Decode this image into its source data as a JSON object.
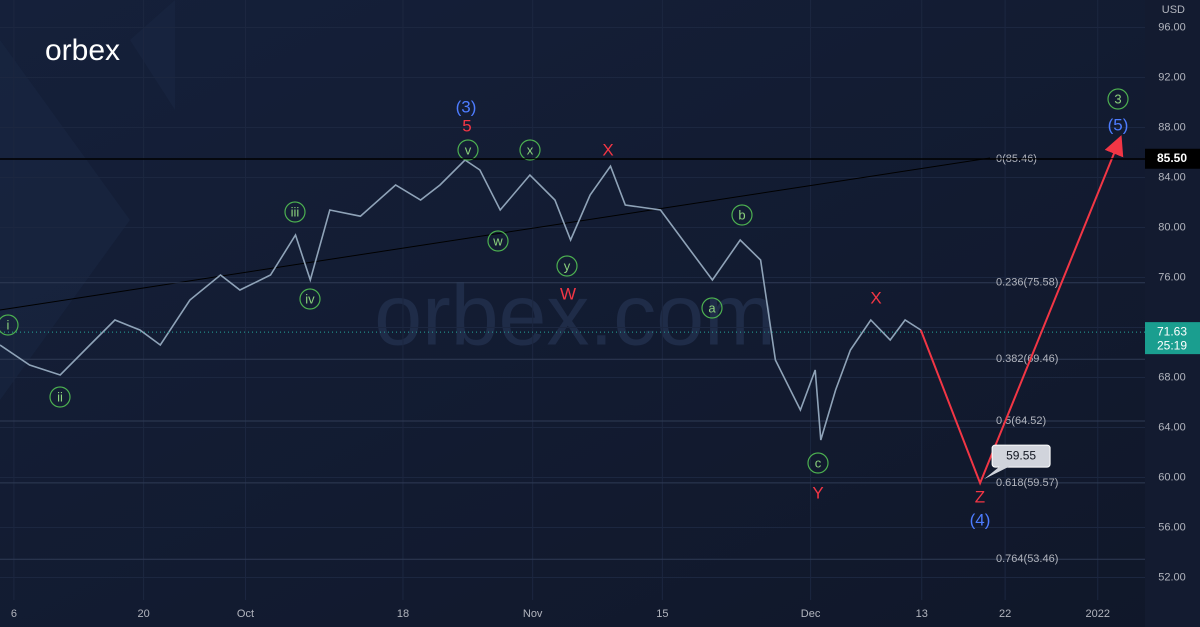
{
  "chart_data": {
    "type": "line",
    "logo": "orbex",
    "watermark": "orbex.com",
    "currency": "USD",
    "color": "#8fa3b8",
    "grid": true,
    "x": [
      3.5,
      6.7,
      10,
      13.2,
      15.9,
      18.6,
      20.8,
      24,
      27.3,
      29.4,
      32.7,
      35.4,
      37,
      39.1,
      42.4,
      46.2,
      48.9,
      51,
      53.7,
      55.3,
      57.5,
      60.7,
      63.4,
      65.1,
      67.2,
      69.4,
      71,
      74.8,
      78,
      80.4,
      83.4,
      85.6,
      87.2,
      89.9,
      91.5,
      92.1,
      93.7,
      95.3,
      97.5,
      99.6,
      101.2,
      102.9
    ],
    "values": [
      70.6,
      69.0,
      68.2,
      70.6,
      72.6,
      71.8,
      70.6,
      74.2,
      76.2,
      75.0,
      76.2,
      79.4,
      75.8,
      81.4,
      80.9,
      83.4,
      82.2,
      83.4,
      85.4,
      84.6,
      81.4,
      84.2,
      82.2,
      79.0,
      82.6,
      84.9,
      81.8,
      81.4,
      78.2,
      75.8,
      79.0,
      77.4,
      69.4,
      65.4,
      68.6,
      63.0,
      67.0,
      70.2,
      72.6,
      71.0,
      72.6,
      71.8
    ],
    "xlim": [
      3.5,
      127.1
    ],
    "ylim": [
      50.2,
      98.2
    ],
    "xticks": [
      {
        "value": 5,
        "label": "6"
      },
      {
        "value": 19,
        "label": "20"
      },
      {
        "value": 30,
        "label": "Oct"
      },
      {
        "value": 47,
        "label": "18"
      },
      {
        "value": 61,
        "label": "Nov"
      },
      {
        "value": 75,
        "label": "15"
      },
      {
        "value": 91,
        "label": "Dec"
      },
      {
        "value": 103,
        "label": "13"
      },
      {
        "value": 112,
        "label": "22"
      },
      {
        "value": 122,
        "label": "2022"
      }
    ],
    "yticks": [
      {
        "value": 52,
        "label": "52.00"
      },
      {
        "value": 56,
        "label": "56.00"
      },
      {
        "value": 60,
        "label": "60.00"
      },
      {
        "value": 64,
        "label": "64.00"
      },
      {
        "value": 68,
        "label": "68.00"
      },
      {
        "value": 72,
        "label": "72.00"
      },
      {
        "value": 76,
        "label": "76.00"
      },
      {
        "value": 80,
        "label": "80.00"
      },
      {
        "value": 84,
        "label": "84.00"
      },
      {
        "value": 88,
        "label": "88.00"
      },
      {
        "value": 92,
        "label": "92.00"
      },
      {
        "value": 96,
        "label": "96.00"
      }
    ],
    "fib_levels": [
      {
        "label": "0(85.46)",
        "value": 85.46
      },
      {
        "label": "0.236(75.58)",
        "value": 75.58
      },
      {
        "label": "0.382(69.46)",
        "value": 69.46
      },
      {
        "label": "0.5(64.52)",
        "value": 64.52
      },
      {
        "label": "0.618(59.57)",
        "value": 59.57
      },
      {
        "label": "0.764(53.46)",
        "value": 53.46
      }
    ],
    "level_line": {
      "value": 85.5,
      "label": "85.50"
    },
    "last_price": {
      "value": 71.63,
      "label": "71.63",
      "countdown": "25:19"
    },
    "projection": {
      "x": [
        102.9,
        109.3,
        124.4
      ],
      "values": [
        71.8,
        59.55,
        87.1
      ],
      "color": "#f23645"
    },
    "annotations": [
      {
        "text": "i",
        "color": "#4caf50",
        "circle": true
      },
      {
        "text": "ii",
        "color": "#4caf50",
        "circle": true
      },
      {
        "text": "iii",
        "color": "#4caf50",
        "circle": true
      },
      {
        "text": "iv",
        "color": "#4caf50",
        "circle": true
      },
      {
        "text": "v",
        "color": "#4caf50",
        "circle": true
      },
      {
        "text": "(3)",
        "color": "#4d7cff",
        "circle": false
      },
      {
        "text": "5",
        "color": "#f23645",
        "circle": false
      },
      {
        "text": "x",
        "color": "#4caf50",
        "circle": true
      },
      {
        "text": "w",
        "color": "#4caf50",
        "circle": true
      },
      {
        "text": "y",
        "color": "#4caf50",
        "circle": true
      },
      {
        "text": "W",
        "color": "#f23645",
        "circle": false
      },
      {
        "text": "X",
        "color": "#f23645",
        "circle": false
      },
      {
        "text": "b",
        "color": "#4caf50",
        "circle": true
      },
      {
        "text": "a",
        "color": "#4caf50",
        "circle": true
      },
      {
        "text": "c",
        "color": "#4caf50",
        "circle": true
      },
      {
        "text": "Y",
        "color": "#f23645",
        "circle": false
      },
      {
        "text": "X",
        "color": "#f23645",
        "circle": false
      },
      {
        "text": "Z",
        "color": "#f23645",
        "circle": false
      },
      {
        "text": "(4)",
        "color": "#4d7cff",
        "circle": false
      },
      {
        "text": "3",
        "color": "#4caf50",
        "circle": true
      },
      {
        "text": "(5)",
        "color": "#4d7cff",
        "circle": false
      }
    ]
  }
}
